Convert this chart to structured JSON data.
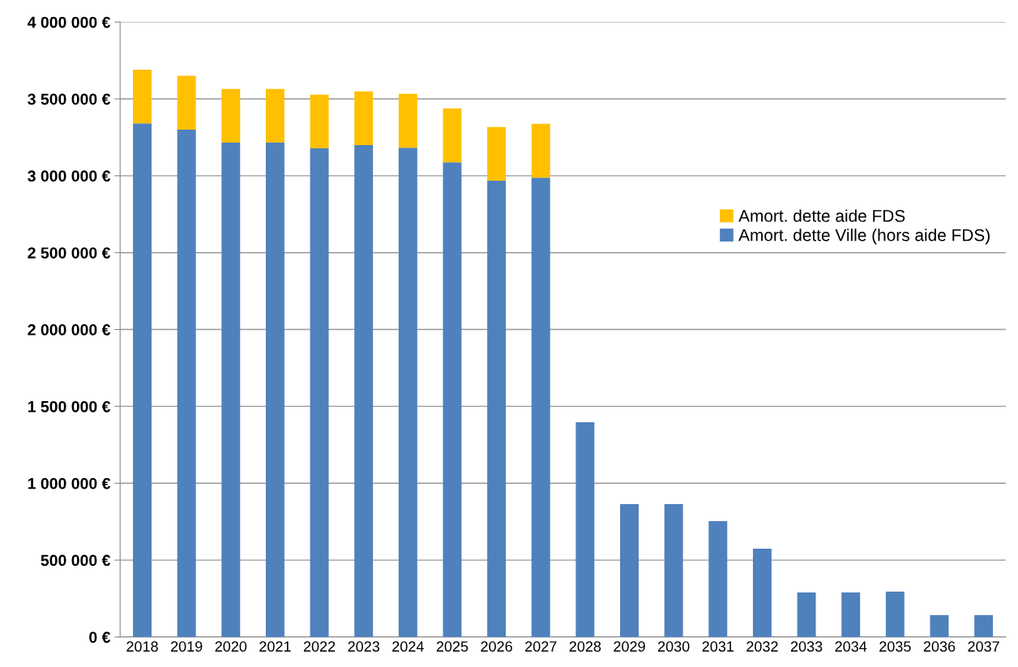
{
  "chart_data": {
    "type": "bar",
    "stacked": true,
    "categories": [
      "2018",
      "2019",
      "2020",
      "2021",
      "2022",
      "2023",
      "2024",
      "2025",
      "2026",
      "2027",
      "2028",
      "2029",
      "2030",
      "2031",
      "2032",
      "2033",
      "2034",
      "2035",
      "2036",
      "2037"
    ],
    "series": [
      {
        "name": "Amort. dette Ville (hors aide FDS)",
        "color": "#4f81bd",
        "values": [
          3340000,
          3300000,
          3215000,
          3215000,
          3178000,
          3199000,
          3183000,
          3088000,
          2967000,
          2988000,
          1397000,
          864000,
          864000,
          754000,
          574000,
          290000,
          290000,
          295000,
          142000,
          142000
        ]
      },
      {
        "name": "Amort. dette aide FDS",
        "color": "#ffc000",
        "values": [
          350000,
          350000,
          350000,
          350000,
          350000,
          350000,
          350000,
          350000,
          350000,
          350000,
          null,
          null,
          null,
          null,
          null,
          null,
          null,
          null,
          null,
          null
        ]
      }
    ],
    "ylim": [
      0,
      4000000
    ],
    "yticks": [
      {
        "value": 0,
        "label": "0 €"
      },
      {
        "value": 500000,
        "label": "500 000 €"
      },
      {
        "value": 1000000,
        "label": "1 000 000 €"
      },
      {
        "value": 1500000,
        "label": "1 500 000 €"
      },
      {
        "value": 2000000,
        "label": "2 000 000 €"
      },
      {
        "value": 2500000,
        "label": "2 500 000 €"
      },
      {
        "value": 3000000,
        "label": "3 000 000 €"
      },
      {
        "value": 3500000,
        "label": "3 500 000 €"
      },
      {
        "value": 4000000,
        "label": "4 000 000 €"
      }
    ],
    "grid": "y",
    "legend": "top right"
  }
}
